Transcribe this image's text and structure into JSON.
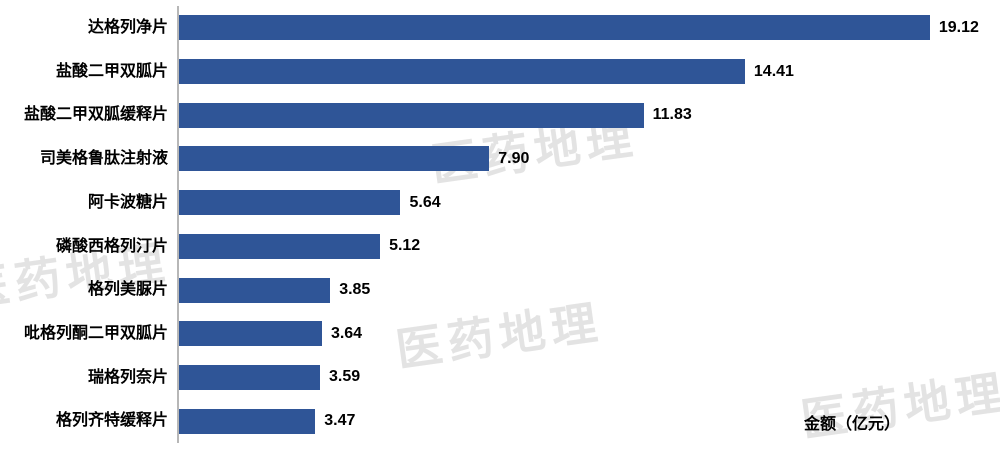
{
  "chart_data": {
    "type": "bar",
    "orientation": "horizontal",
    "title": "",
    "xlabel": "金额（亿元）",
    "ylabel": "",
    "xlim": [
      0,
      20.6
    ],
    "grid": false,
    "legend_position": "none",
    "bar_color": "#2F5597",
    "categories": [
      "达格列净片",
      "盐酸二甲双胍片",
      "盐酸二甲双胍缓释片",
      "司美格鲁肽注射液",
      "阿卡波糖片",
      "磷酸西格列汀片",
      "格列美脲片",
      "吡格列酮二甲双胍片",
      "瑞格列奈片",
      "格列齐特缓释片"
    ],
    "values": [
      19.12,
      14.41,
      11.83,
      7.9,
      5.64,
      5.12,
      3.85,
      3.64,
      3.59,
      3.47
    ],
    "value_labels": [
      "19.12",
      "14.41",
      "11.83",
      "7.90",
      "5.64",
      "5.12",
      "3.85",
      "3.64",
      "3.59",
      "3.47"
    ]
  },
  "watermark": {
    "text": "医药地理"
  }
}
